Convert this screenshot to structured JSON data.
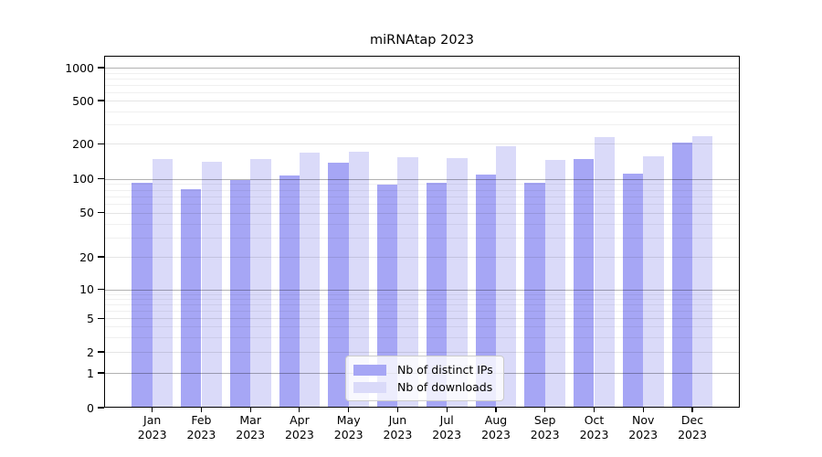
{
  "chart_data": {
    "type": "bar",
    "title": "miRNAtap 2023",
    "categories": [
      "Jan 2023",
      "Feb 2023",
      "Mar 2023",
      "Apr 2023",
      "May 2023",
      "Jun 2023",
      "Jul 2023",
      "Aug 2023",
      "Sep 2023",
      "Oct 2023",
      "Nov 2023",
      "Dec 2023"
    ],
    "x_tick_months": [
      "Jan",
      "Feb",
      "Mar",
      "Apr",
      "May",
      "Jun",
      "Jul",
      "Aug",
      "Sep",
      "Oct",
      "Nov",
      "Dec"
    ],
    "x_tick_year": "2023",
    "series": [
      {
        "name": "Nb of distinct IPs",
        "color": "#a6a6f5",
        "values": [
          93,
          81,
          98,
          107,
          138,
          89,
          93,
          108,
          93,
          147,
          110,
          207
        ]
      },
      {
        "name": "Nb of downloads",
        "color": "#dadaf9",
        "values": [
          149,
          141,
          149,
          168,
          170,
          153,
          150,
          189,
          146,
          230,
          156,
          233
        ]
      }
    ],
    "y_ticks": [
      0,
      1,
      2,
      5,
      10,
      20,
      50,
      100,
      200,
      500,
      1000
    ],
    "y_minor_ticks": [
      3,
      4,
      6,
      7,
      8,
      9,
      30,
      40,
      60,
      70,
      80,
      90,
      300,
      400,
      600,
      700,
      800,
      900
    ],
    "y_scale": "log-like (compressed below 20, linear 0-1)",
    "ylim": [
      0,
      1300
    ],
    "grid": "horizontal major + minor",
    "legend_position": "lower center"
  }
}
